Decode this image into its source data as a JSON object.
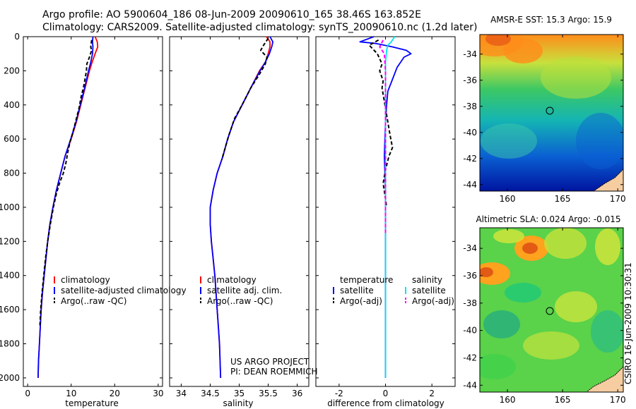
{
  "header": {
    "line1": "Argo profile: AO 5900604_186 08-Jun-2009 20090610_165 38.46S 163.852E",
    "line2": "Climatology: CARS2009. Satellite-adjusted climatology: synTS_20090610.nc (1.2d later)"
  },
  "credit": {
    "project": "US ARGO PROJECT",
    "pi": "PI: DEAN ROEMMICH",
    "stamp": "CSIRO 16-Jun-2009 10:30:31"
  },
  "colors": {
    "climatology": "#ff0000",
    "satellite": "#0000ff",
    "argo": "#000000",
    "salinity_satellite": "#00e5ee",
    "salinity_argo": "#ff00ff",
    "land": "#f6cda0"
  },
  "chart_data": [
    {
      "type": "line",
      "id": "temperature",
      "xlabel": "temperature",
      "ylabel": "",
      "xlim": [
        -1,
        31
      ],
      "ylim": [
        2050,
        0
      ],
      "xticks": [
        0,
        10,
        20,
        30
      ],
      "yticks": [
        0,
        200,
        400,
        600,
        800,
        1000,
        1200,
        1400,
        1600,
        1800,
        2000
      ],
      "legend": [
        "climatology",
        "satellite-adjusted climatology",
        "Argo(..raw -QC)"
      ],
      "series": [
        {
          "name": "climatology",
          "style": "solid",
          "points": [
            [
              15.5,
              0
            ],
            [
              16,
              30
            ],
            [
              16.1,
              60
            ],
            [
              15.5,
              100
            ],
            [
              14.8,
              150
            ],
            [
              14.2,
              200
            ],
            [
              13.2,
              300
            ],
            [
              12.2,
              400
            ],
            [
              11.2,
              500
            ],
            [
              10.0,
              600
            ],
            [
              8.6,
              700
            ],
            [
              7.6,
              800
            ],
            [
              6.6,
              900
            ],
            [
              5.8,
              1000
            ],
            [
              5.1,
              1100
            ],
            [
              4.6,
              1200
            ],
            [
              4.2,
              1300
            ],
            [
              3.8,
              1400
            ],
            [
              3.4,
              1500
            ],
            [
              3.1,
              1600
            ],
            [
              2.9,
              1700
            ],
            [
              2.7,
              1800
            ],
            [
              2.5,
              1900
            ],
            [
              2.4,
              2000
            ]
          ]
        },
        {
          "name": "satellite-adjusted climatology",
          "style": "solid",
          "points": [
            [
              15.0,
              0
            ],
            [
              14.9,
              30
            ],
            [
              15.0,
              60
            ],
            [
              14.9,
              100
            ],
            [
              14.5,
              150
            ],
            [
              14.0,
              200
            ],
            [
              13.1,
              300
            ],
            [
              12.1,
              400
            ],
            [
              11.1,
              500
            ],
            [
              9.9,
              600
            ],
            [
              8.6,
              700
            ],
            [
              7.6,
              800
            ],
            [
              6.6,
              900
            ],
            [
              5.8,
              1000
            ],
            [
              5.1,
              1100
            ],
            [
              4.6,
              1200
            ],
            [
              4.2,
              1300
            ],
            [
              3.8,
              1400
            ],
            [
              3.4,
              1500
            ],
            [
              3.1,
              1600
            ],
            [
              2.9,
              1700
            ],
            [
              2.7,
              1800
            ],
            [
              2.5,
              1900
            ],
            [
              2.4,
              2000
            ]
          ]
        },
        {
          "name": "Argo(..raw -QC)",
          "style": "dashed",
          "points": [
            [
              14.7,
              20
            ],
            [
              14.5,
              60
            ],
            [
              14.7,
              80
            ],
            [
              14.2,
              120
            ],
            [
              13.6,
              160
            ],
            [
              13.5,
              200
            ],
            [
              13.1,
              260
            ],
            [
              12.8,
              300
            ],
            [
              12.3,
              350
            ],
            [
              11.8,
              420
            ],
            [
              11.2,
              480
            ],
            [
              10.4,
              560
            ],
            [
              9.7,
              620
            ],
            [
              9.2,
              680
            ],
            [
              8.8,
              740
            ],
            [
              8.2,
              800
            ],
            [
              7.3,
              860
            ],
            [
              6.6,
              920
            ],
            [
              5.9,
              1000
            ],
            [
              5.2,
              1100
            ],
            [
              4.6,
              1200
            ],
            [
              4.1,
              1300
            ],
            [
              3.7,
              1400
            ],
            [
              3.3,
              1500
            ],
            [
              3.0,
              1600
            ],
            [
              2.8,
              1700
            ]
          ]
        }
      ]
    },
    {
      "type": "line",
      "id": "salinity",
      "xlabel": "salinity",
      "ylabel": "",
      "xlim": [
        33.8,
        36.2
      ],
      "ylim": [
        2050,
        0
      ],
      "xticks": [
        34,
        34.5,
        35,
        35.5,
        36
      ],
      "yticks": [
        0,
        200,
        400,
        600,
        800,
        1000,
        1200,
        1400,
        1600,
        1800,
        2000
      ],
      "legend": [
        "climatology",
        "satellite adj. clim.",
        "Argo(..raw -QC)"
      ],
      "series": [
        {
          "name": "climatology",
          "style": "solid",
          "points": [
            [
              35.47,
              0
            ],
            [
              35.53,
              30
            ],
            [
              35.53,
              60
            ],
            [
              35.5,
              100
            ],
            [
              35.45,
              150
            ],
            [
              35.35,
              200
            ],
            [
              35.2,
              300
            ],
            [
              35.05,
              400
            ],
            [
              34.9,
              500
            ],
            [
              34.8,
              600
            ],
            [
              34.72,
              700
            ],
            [
              34.62,
              800
            ],
            [
              34.55,
              900
            ],
            [
              34.5,
              1000
            ],
            [
              34.5,
              1100
            ],
            [
              34.52,
              1200
            ],
            [
              34.55,
              1300
            ],
            [
              34.58,
              1400
            ],
            [
              34.6,
              1500
            ],
            [
              34.62,
              1600
            ],
            [
              34.64,
              1700
            ],
            [
              34.66,
              1800
            ],
            [
              34.67,
              1900
            ],
            [
              34.68,
              2000
            ]
          ]
        },
        {
          "name": "satellite adj. clim.",
          "style": "solid",
          "points": [
            [
              35.53,
              0
            ],
            [
              35.58,
              30
            ],
            [
              35.56,
              60
            ],
            [
              35.52,
              100
            ],
            [
              35.45,
              150
            ],
            [
              35.36,
              200
            ],
            [
              35.2,
              300
            ],
            [
              35.05,
              400
            ],
            [
              34.9,
              500
            ],
            [
              34.8,
              600
            ],
            [
              34.72,
              700
            ],
            [
              34.62,
              800
            ],
            [
              34.55,
              900
            ],
            [
              34.5,
              1000
            ],
            [
              34.5,
              1100
            ],
            [
              34.52,
              1200
            ],
            [
              34.55,
              1300
            ],
            [
              34.58,
              1400
            ],
            [
              34.6,
              1500
            ],
            [
              34.62,
              1600
            ],
            [
              34.64,
              1700
            ],
            [
              34.66,
              1800
            ],
            [
              34.67,
              1900
            ],
            [
              34.68,
              2000
            ]
          ]
        },
        {
          "name": "Argo(..raw -QC)",
          "style": "dashed",
          "points": [
            [
              35.5,
              10
            ],
            [
              35.42,
              50
            ],
            [
              35.37,
              80
            ],
            [
              35.48,
              120
            ],
            [
              35.45,
              160
            ],
            [
              35.35,
              220
            ],
            [
              35.2,
              300
            ],
            [
              35.05,
              400
            ],
            [
              34.92,
              480
            ],
            [
              34.82,
              580
            ],
            [
              34.76,
              650
            ],
            [
              34.7,
              720
            ]
          ]
        }
      ]
    },
    {
      "type": "line",
      "id": "difference",
      "xlabel": "difference from climatology",
      "ylabel": "",
      "xlim": [
        -3,
        3
      ],
      "ylim": [
        2050,
        0
      ],
      "xticks": [
        -2,
        0,
        2
      ],
      "yticks": [
        0,
        200,
        400,
        600,
        800,
        1000,
        1200,
        1400,
        1600,
        1800,
        2000
      ],
      "legend_left_title": "temperature",
      "legend_right_title": "salinity",
      "legend": [
        "satellite",
        "Argo(-adj)",
        "satellite",
        "Argo(-adj)"
      ],
      "series": [
        {
          "name": "temperature satellite",
          "style": "solid",
          "points": [
            [
              -0.5,
              0
            ],
            [
              -1.1,
              30
            ],
            [
              -0.4,
              40
            ],
            [
              0.3,
              60
            ],
            [
              0.9,
              80
            ],
            [
              1.1,
              100
            ],
            [
              0.8,
              120
            ],
            [
              0.5,
              180
            ],
            [
              0.3,
              250
            ],
            [
              0.1,
              320
            ],
            [
              0.05,
              400
            ],
            [
              0.0,
              500
            ],
            [
              -0.05,
              700
            ],
            [
              0.0,
              900
            ],
            [
              0.0,
              2000
            ]
          ]
        },
        {
          "name": "temperature Argo(-adj)",
          "style": "dashed",
          "points": [
            [
              -0.3,
              20
            ],
            [
              -0.7,
              50
            ],
            [
              -0.35,
              100
            ],
            [
              -0.15,
              160
            ],
            [
              -0.25,
              200
            ],
            [
              -0.1,
              260
            ],
            [
              -0.15,
              300
            ],
            [
              -0.05,
              380
            ],
            [
              0.1,
              500
            ],
            [
              0.2,
              580
            ],
            [
              0.3,
              650
            ],
            [
              0.15,
              700
            ],
            [
              0.0,
              780
            ],
            [
              -0.1,
              860
            ],
            [
              0.0,
              950
            ],
            [
              0.05,
              1000
            ]
          ]
        },
        {
          "name": "salinity satellite",
          "style": "solid",
          "points": [
            [
              0.4,
              0
            ],
            [
              0.25,
              30
            ],
            [
              0.1,
              50
            ],
            [
              0.05,
              80
            ],
            [
              0.0,
              150
            ],
            [
              0.0,
              2000
            ]
          ]
        },
        {
          "name": "salinity Argo(-adj)",
          "style": "dashed",
          "points": [
            [
              -0.1,
              20
            ],
            [
              -0.25,
              60
            ],
            [
              -0.05,
              100
            ],
            [
              0.0,
              200
            ],
            [
              0.0,
              1150
            ]
          ]
        }
      ]
    },
    {
      "type": "heatmap",
      "id": "sst-map",
      "title": "AMSR-E SST: 15.3 Argo: 15.9",
      "xticks": [
        160,
        165,
        170
      ],
      "yticks": [
        -34,
        -36,
        -38,
        -40,
        -42,
        -44
      ],
      "xlim": [
        157.5,
        170.5
      ],
      "ylim": [
        -44.5,
        -32.5
      ],
      "marker": {
        "lon": 163.852,
        "lat": -38.46
      }
    },
    {
      "type": "heatmap",
      "id": "sla-map",
      "title": "Altimetric SLA: 0.024 Argo: -0.015",
      "xticks": [
        160,
        165,
        170
      ],
      "yticks": [
        -34,
        -36,
        -38,
        -40,
        -42,
        -44
      ],
      "xlim": [
        157.5,
        170.5
      ],
      "ylim": [
        -44.5,
        -32.5
      ],
      "marker": {
        "lon": 163.852,
        "lat": -38.46
      }
    }
  ]
}
